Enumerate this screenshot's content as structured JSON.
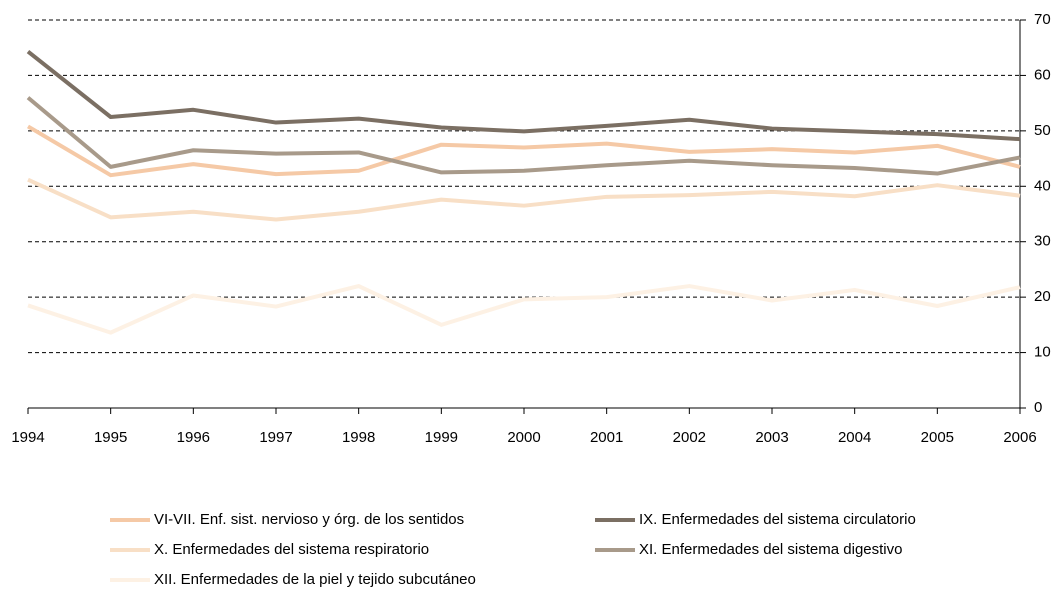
{
  "chart_data": {
    "type": "line",
    "x": [
      1994,
      1995,
      1996,
      1997,
      1998,
      1999,
      2000,
      2001,
      2002,
      2003,
      2004,
      2005,
      2006
    ],
    "xlim": [
      1994,
      2006
    ],
    "xticks": [
      1994,
      1995,
      1996,
      1997,
      1998,
      1999,
      2000,
      2001,
      2002,
      2003,
      2004,
      2005,
      2006
    ],
    "ylim": [
      0,
      70
    ],
    "yticks": [
      0,
      10,
      20,
      30,
      40,
      50,
      60,
      70
    ],
    "grid": true,
    "series": [
      {
        "name": "VI-VII. Enf. sist. nervioso y órg. de los sentidos",
        "color": "#f5c9a6",
        "values": [
          50.8,
          42,
          44,
          42.2,
          42.8,
          47.5,
          47,
          47.7,
          46.2,
          46.7,
          46.1,
          47.3,
          43.5
        ]
      },
      {
        "name": "IX. Enfermedades del sistema circulatorio",
        "color": "#7b6f63",
        "values": [
          64.3,
          52.5,
          53.8,
          51.5,
          52.2,
          50.6,
          49.9,
          50.9,
          52,
          50.4,
          49.9,
          49.4,
          48.5
        ]
      },
      {
        "name": "X. Enfermedades del sistema respiratorio",
        "color": "#f8dfc6",
        "values": [
          41.2,
          34.4,
          35.4,
          34,
          35.4,
          37.6,
          36.5,
          38.1,
          38.4,
          39,
          38.2,
          40.2,
          38.3
        ]
      },
      {
        "name": "XI. Enfermedades del sistema digestivo",
        "color": "#a89a8a",
        "values": [
          56,
          43.5,
          46.5,
          45.9,
          46.1,
          42.5,
          42.8,
          43.8,
          44.6,
          43.8,
          43.3,
          42.3,
          45.2
        ]
      },
      {
        "name": "XII. Enfermedades de la piel y tejido subcutáneo",
        "color": "#fdf1e4",
        "values": [
          18.5,
          13.6,
          20.3,
          18.3,
          22,
          15,
          19.6,
          20,
          22,
          19.4,
          21.3,
          18.4,
          21.8
        ]
      }
    ]
  }
}
